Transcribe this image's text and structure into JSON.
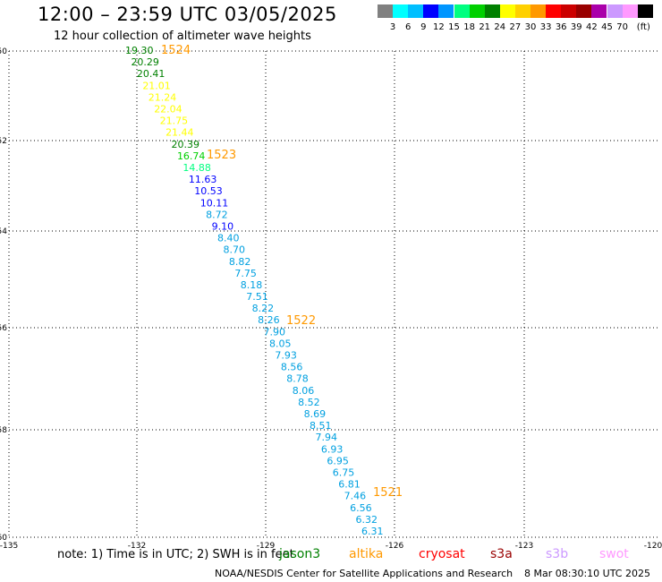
{
  "header": {
    "title": "12:00 – 23:59 UTC 03/05/2025",
    "subtitle": "12 hour collection of altimeter wave heights"
  },
  "legend": {
    "unit": "(ft)",
    "colors": [
      "#808080",
      "#00ffff",
      "#00bfff",
      "#0000ff",
      "#0096ff",
      "#00ff80",
      "#00d000",
      "#008000",
      "#ffff00",
      "#ffd000",
      "#ff9900",
      "#ff0000",
      "#cc0000",
      "#990000",
      "#aa00aa",
      "#cc99ff",
      "#ff99ff",
      "#000000"
    ],
    "labels": [
      "3",
      "6",
      "9",
      "12",
      "15",
      "18",
      "21",
      "24",
      "27",
      "30",
      "33",
      "36",
      "39",
      "42",
      "45",
      "70"
    ]
  },
  "axes": {
    "lat_labels": [
      "-50",
      "-52",
      "-54",
      "-56",
      "-58",
      "-60"
    ],
    "lon_labels": [
      "-135",
      "-132",
      "-129",
      "-126",
      "-123",
      "-120"
    ]
  },
  "track": {
    "points": [
      {
        "v": "19.30",
        "c": "#008000"
      },
      {
        "v": "20.29",
        "c": "#008000"
      },
      {
        "v": "20.41",
        "c": "#008000"
      },
      {
        "v": "21.01",
        "c": "#ffff00"
      },
      {
        "v": "21.24",
        "c": "#ffff00"
      },
      {
        "v": "22.04",
        "c": "#ffff00"
      },
      {
        "v": "21.75",
        "c": "#ffff00"
      },
      {
        "v": "21.44",
        "c": "#ffff00"
      },
      {
        "v": "20.39",
        "c": "#008000"
      },
      {
        "v": "16.74",
        "c": "#00d000"
      },
      {
        "v": "14.88",
        "c": "#00ff80"
      },
      {
        "v": "11.63",
        "c": "#0000ff"
      },
      {
        "v": "10.53",
        "c": "#0000ff"
      },
      {
        "v": "10.11",
        "c": "#0000ff"
      },
      {
        "v": "8.72",
        "c": "#00a0e0"
      },
      {
        "v": "9.10",
        "c": "#0000ff"
      },
      {
        "v": "8.40",
        "c": "#00a0e0"
      },
      {
        "v": "8.70",
        "c": "#00a0e0"
      },
      {
        "v": "8.82",
        "c": "#00a0e0"
      },
      {
        "v": "7.75",
        "c": "#00a0e0"
      },
      {
        "v": "8.18",
        "c": "#00a0e0"
      },
      {
        "v": "7.51",
        "c": "#00a0e0"
      },
      {
        "v": "8.22",
        "c": "#00a0e0"
      },
      {
        "v": "8.26",
        "c": "#00a0e0"
      },
      {
        "v": "7.90",
        "c": "#00a0e0"
      },
      {
        "v": "8.05",
        "c": "#00a0e0"
      },
      {
        "v": "7.93",
        "c": "#00a0e0"
      },
      {
        "v": "8.56",
        "c": "#00a0e0"
      },
      {
        "v": "8.78",
        "c": "#00a0e0"
      },
      {
        "v": "8.06",
        "c": "#00a0e0"
      },
      {
        "v": "8.52",
        "c": "#00a0e0"
      },
      {
        "v": "8.69",
        "c": "#00a0e0"
      },
      {
        "v": "8.51",
        "c": "#00a0e0"
      },
      {
        "v": "7.94",
        "c": "#00a0e0"
      },
      {
        "v": "6.93",
        "c": "#00a0e0"
      },
      {
        "v": "6.95",
        "c": "#00a0e0"
      },
      {
        "v": "6.75",
        "c": "#00a0e0"
      },
      {
        "v": "6.81",
        "c": "#00a0e0"
      },
      {
        "v": "7.46",
        "c": "#00a0e0"
      },
      {
        "v": "6.56",
        "c": "#00a0e0"
      },
      {
        "v": "6.32",
        "c": "#00a0e0"
      },
      {
        "v": "6.31",
        "c": "#00a0e0"
      }
    ],
    "time_marks": [
      "1524",
      "1523",
      "1522",
      "1521"
    ],
    "time_color": "#ff9900"
  },
  "footer": {
    "note": "note: 1) Time is in UTC; 2) SWH is in feet",
    "missions": [
      {
        "name": "jason3",
        "color": "#008000"
      },
      {
        "name": "altika",
        "color": "#ff9900"
      },
      {
        "name": "cryosat",
        "color": "#ff0000"
      },
      {
        "name": "s3a",
        "color": "#990000"
      },
      {
        "name": "s3b",
        "color": "#cc99ff"
      },
      {
        "name": "swot",
        "color": "#ff99ff"
      }
    ],
    "credit": "NOAA/NESDIS Center for Satellite Applications and Research",
    "timestamp": "8 Mar 08:30:10 UTC 2025"
  }
}
